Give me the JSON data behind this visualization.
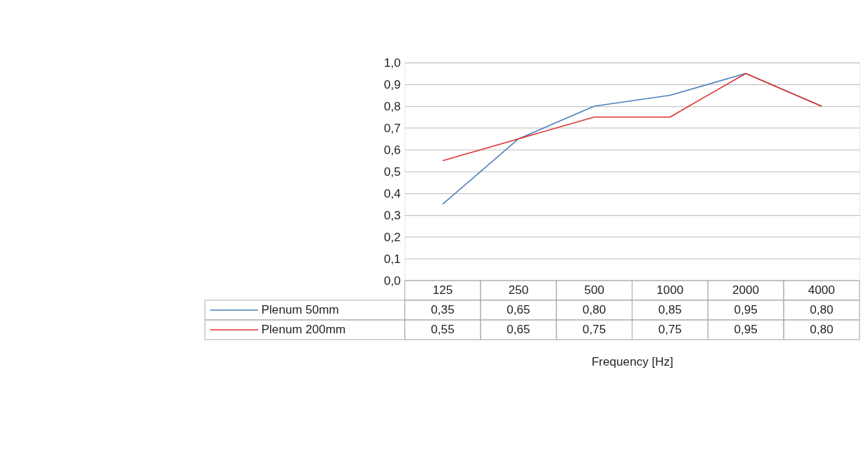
{
  "chart_data": {
    "type": "line",
    "xlabel": "Frequency [Hz]",
    "categories": [
      "125",
      "250",
      "500",
      "1000",
      "2000",
      "4000"
    ],
    "series": [
      {
        "name": "Plenum 50mm",
        "color": "#4a7ebb",
        "values": [
          0.35,
          0.65,
          0.8,
          0.85,
          0.95,
          0.8
        ],
        "value_labels": [
          "0,35",
          "0,65",
          "0,80",
          "0,85",
          "0,95",
          "0,80"
        ]
      },
      {
        "name": "Plenum 200mm",
        "color": "#e0312f",
        "values": [
          0.55,
          0.65,
          0.75,
          0.75,
          0.95,
          0.8
        ],
        "value_labels": [
          "0,55",
          "0,65",
          "0,75",
          "0,75",
          "0,95",
          "0,80"
        ]
      }
    ],
    "ylim": [
      0,
      1
    ],
    "yticks": [
      {
        "value": 0,
        "label": "0,0"
      },
      {
        "value": 0.1,
        "label": "0,1"
      },
      {
        "value": 0.2,
        "label": "0,2"
      },
      {
        "value": 0.3,
        "label": "0,3"
      },
      {
        "value": 0.4,
        "label": "0,4"
      },
      {
        "value": 0.5,
        "label": "0,5"
      },
      {
        "value": 0.6,
        "label": "0,6"
      },
      {
        "value": 0.7,
        "label": "0,7"
      },
      {
        "value": 0.8,
        "label": "0,8"
      },
      {
        "value": 0.9,
        "label": "0,9"
      },
      {
        "value": 1.0,
        "label": "1,0"
      }
    ],
    "grid": "y",
    "legend": "bottom",
    "marker": "none",
    "line_style": "solid"
  }
}
